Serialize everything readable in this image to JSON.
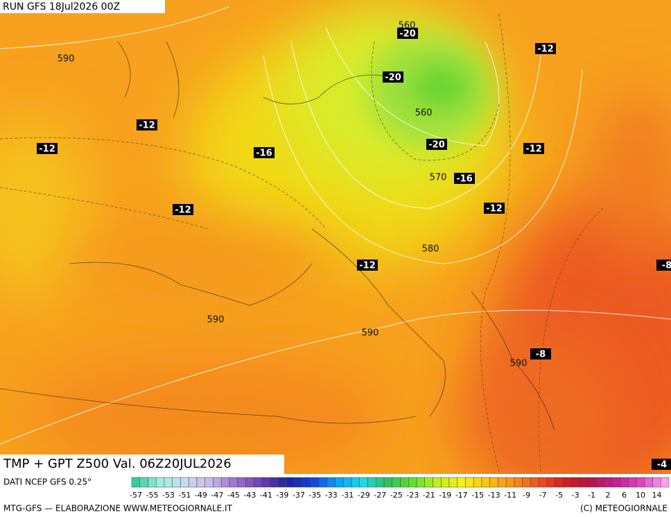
{
  "header": {
    "run": "RUN GFS 18Jul2026 00Z"
  },
  "map": {
    "isotherm_labels": [
      "-20",
      "-12",
      "-20",
      "-12",
      "-12",
      "-16",
      "-20",
      "-12",
      "-16",
      "-12",
      "-12",
      "-12",
      "-8",
      "-8",
      "-4"
    ],
    "height_labels": [
      "560",
      "590",
      "560",
      "570",
      "580",
      "590",
      "590",
      "590"
    ]
  },
  "title": "TMP + GPT Z500 Val. 06Z20JUL2026",
  "source": "DATI NCEP GFS 0.25°",
  "colorbar_ticks": [
    "-57",
    "-55",
    "-53",
    "-51",
    "-49",
    "-47",
    "-45",
    "-43",
    "-41",
    "-39",
    "-37",
    "-35",
    "-33",
    "-31",
    "-29",
    "-27",
    "-25",
    "-23",
    "-21",
    "-19",
    "-17",
    "-15",
    "-13",
    "-11",
    "-9",
    "-7",
    "-5",
    "-3",
    "-1",
    "2",
    "6",
    "10",
    "14"
  ],
  "footer": {
    "left": "MTG-GFS — ELABORAZIONE WWW.METEOGIORNALE.IT",
    "right": "(C) METEOGIORNALE"
  }
}
